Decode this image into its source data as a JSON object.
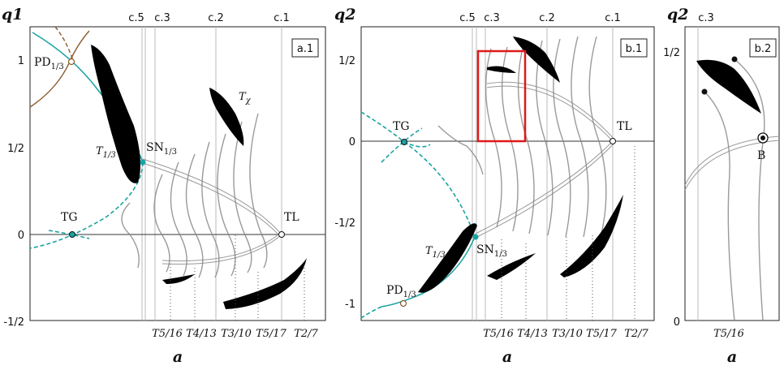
{
  "chart_data": [
    {
      "type": "line",
      "panel": "a.1",
      "ylabel": "q1",
      "xlabel": "a",
      "y_ticks": [
        "1",
        "1/2",
        "0",
        "-1/2"
      ],
      "top_ticks": [
        "c.5",
        "c.3",
        "c.2",
        "c.1"
      ],
      "bottom_labels": [
        "T5/16",
        "T4/13",
        "T3/10",
        "T5/17",
        "T2/7"
      ],
      "points": [
        {
          "name": "PD",
          "sub": "1/3"
        },
        {
          "name": "SN",
          "sub": "1/3"
        },
        {
          "name": "TG",
          "sub": ""
        },
        {
          "name": "TL",
          "sub": ""
        }
      ],
      "region_labels": [
        {
          "name": "T",
          "sub": "1/3"
        },
        {
          "name": "T",
          "sub": "χ"
        }
      ]
    },
    {
      "type": "line",
      "panel": "b.1",
      "ylabel": "q2",
      "xlabel": "a",
      "y_ticks": [
        "1/2",
        "0",
        "-1/2",
        "-1"
      ],
      "top_ticks": [
        "c.5",
        "c.3",
        "c.2",
        "c.1"
      ],
      "bottom_labels": [
        "T5/16",
        "T4/13",
        "T3/10",
        "T5/17",
        "T2/7"
      ],
      "points": [
        {
          "name": "TG",
          "sub": ""
        },
        {
          "name": "TL",
          "sub": ""
        },
        {
          "name": "SN",
          "sub": "1/3"
        },
        {
          "name": "PD",
          "sub": "1/3"
        }
      ],
      "region_labels": [
        {
          "name": "T",
          "sub": "1/3"
        }
      ]
    },
    {
      "type": "line",
      "panel": "b.2",
      "ylabel": "q2",
      "xlabel": "a",
      "y_ticks": [
        "1/2",
        "0"
      ],
      "top_ticks": [
        "c.3"
      ],
      "bottom_labels": [
        "T5/16"
      ],
      "points": [
        {
          "name": "B",
          "sub": ""
        }
      ]
    }
  ],
  "colors": {
    "bifurcation": "#1aa3a3",
    "pd_curve": "#8b5a2b",
    "highlight": "#e01818"
  }
}
